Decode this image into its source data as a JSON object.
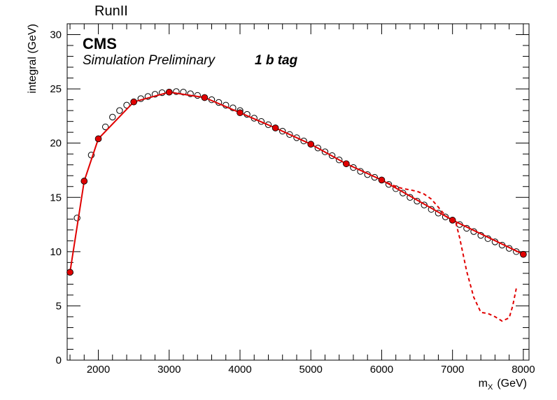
{
  "header": {
    "run_label": "RunII"
  },
  "legend": {
    "experiment": "CMS",
    "status": "Simulation Preliminary",
    "category": "1 b tag"
  },
  "chart_data": {
    "type": "scatter",
    "xlabel": "m",
    "xlabel_sub": "X",
    "xlabel_unit": "(GeV)",
    "ylabel": "integral (GeV)",
    "xlim": [
      1560,
      8080
    ],
    "ylim": [
      0,
      31
    ],
    "xticks": [
      2000,
      3000,
      4000,
      5000,
      6000,
      7000,
      8000
    ],
    "yticks": [
      0,
      5,
      10,
      15,
      20,
      25,
      30
    ],
    "grid": false,
    "series": [
      {
        "style": "open-circles",
        "color": "#000000",
        "x": [
          1600,
          1700,
          1800,
          1900,
          2000,
          2100,
          2200,
          2300,
          2400,
          2500,
          2600,
          2700,
          2800,
          2900,
          3000,
          3100,
          3200,
          3300,
          3400,
          3500,
          3600,
          3700,
          3800,
          3900,
          4000,
          4100,
          4200,
          4300,
          4400,
          4500,
          4600,
          4700,
          4800,
          4900,
          5000,
          5100,
          5200,
          5300,
          5400,
          5500,
          5600,
          5700,
          5800,
          5900,
          6000,
          6100,
          6200,
          6300,
          6400,
          6500,
          6600,
          6700,
          6800,
          6900,
          7000,
          7100,
          7200,
          7300,
          7400,
          7500,
          7600,
          7700,
          7800,
          7900,
          8000
        ],
        "y": [
          8.1,
          13.1,
          16.5,
          18.9,
          20.4,
          21.5,
          22.4,
          23.0,
          23.5,
          23.8,
          24.1,
          24.3,
          24.5,
          24.65,
          24.7,
          24.75,
          24.7,
          24.55,
          24.4,
          24.2,
          24.0,
          23.75,
          23.5,
          23.25,
          23.0,
          22.65,
          22.3,
          22.0,
          21.7,
          21.4,
          21.1,
          20.8,
          20.5,
          20.2,
          19.9,
          19.55,
          19.2,
          18.85,
          18.45,
          18.1,
          17.75,
          17.4,
          17.1,
          16.85,
          16.6,
          16.2,
          15.8,
          15.4,
          15.0,
          14.65,
          14.3,
          13.9,
          13.55,
          13.2,
          12.9,
          12.5,
          12.15,
          11.85,
          11.5,
          11.2,
          10.9,
          10.6,
          10.3,
          10.0,
          9.75
        ]
      },
      {
        "style": "filled-circles",
        "color": "#e00000",
        "x": [
          1600,
          1800,
          2000,
          2500,
          3000,
          3500,
          4000,
          4500,
          5000,
          5500,
          6000,
          7000,
          8000
        ],
        "y": [
          8.1,
          16.5,
          20.4,
          23.8,
          24.7,
          24.2,
          22.8,
          21.4,
          19.9,
          18.1,
          16.6,
          12.9,
          9.75
        ]
      },
      {
        "style": "solid-line",
        "color": "#e00000",
        "x": [
          1600,
          1800,
          2000,
          2500,
          3000,
          3500,
          4000,
          4500,
          5000,
          5500,
          6000,
          7000,
          8000
        ],
        "y": [
          8.1,
          16.5,
          20.4,
          23.8,
          24.7,
          24.2,
          22.8,
          21.4,
          19.9,
          18.1,
          16.6,
          12.9,
          9.75
        ]
      },
      {
        "style": "dashed-line",
        "color": "#e00000",
        "x": [
          6000,
          6100,
          6200,
          6300,
          6400,
          6500,
          6600,
          6700,
          6800,
          6900,
          7000,
          7050,
          7100,
          7200,
          7300,
          7400,
          7500,
          7600,
          7700,
          7800,
          7850,
          7900
        ],
        "y": [
          16.6,
          16.3,
          16.0,
          15.8,
          15.7,
          15.55,
          15.3,
          14.85,
          14.1,
          13.3,
          12.8,
          12.6,
          11.3,
          8.2,
          5.8,
          4.4,
          4.3,
          4.0,
          3.6,
          3.9,
          5.0,
          6.6
        ]
      }
    ]
  }
}
